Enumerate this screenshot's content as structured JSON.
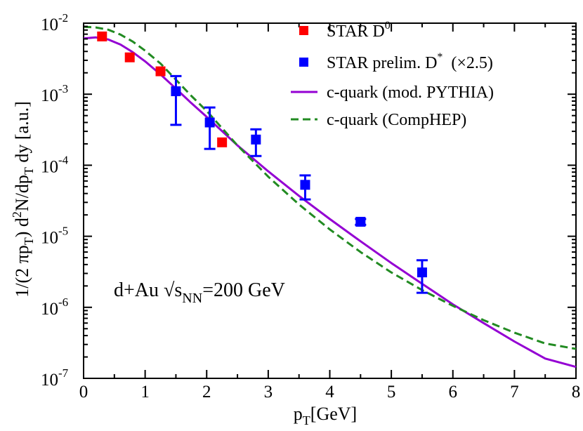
{
  "chart_data": {
    "type": "scatter",
    "title": "",
    "xlabel": {
      "main": "p",
      "sub": "T",
      "rest": "[GeV]"
    },
    "ylabel": "1/(2 πp_T) d^2N/dp_T dy  [a.u.]",
    "ylabel_parts": {
      "p1": "1/(2 πp",
      "s1": "T",
      "p2": ") d",
      "sup": "2",
      "p3": "N/dp",
      "s2": "T",
      "p4": " dy  [a.u.]"
    },
    "xlim": [
      0,
      8
    ],
    "ylim": [
      1e-07,
      0.01
    ],
    "yscale": "log",
    "x_ticks": [
      "0",
      "1",
      "2",
      "3",
      "4",
      "5",
      "6",
      "7",
      "8"
    ],
    "y_ticks": [
      {
        "value": 1e-07,
        "base": "10",
        "exp": "-7"
      },
      {
        "value": 1e-06,
        "base": "10",
        "exp": "-6"
      },
      {
        "value": 1e-05,
        "base": "10",
        "exp": "-5"
      },
      {
        "value": 0.0001,
        "base": "10",
        "exp": "-4"
      },
      {
        "value": 0.001,
        "base": "10",
        "exp": "-3"
      },
      {
        "value": 0.01,
        "base": "10",
        "exp": "-2"
      }
    ],
    "grid": false,
    "legend_position": "top-right",
    "series": [
      {
        "name": "STAR D",
        "name_sup": "0",
        "name_suffix": "",
        "kind": "markers",
        "color": "#ff0000",
        "x": [
          0.3,
          0.75,
          1.25,
          2.25
        ],
        "y": [
          0.0065,
          0.0033,
          0.0021,
          0.00021
        ]
      },
      {
        "name": "STAR prelim. D",
        "name_sup": "*",
        "name_suffix": "  (×2.5)",
        "kind": "markers_errorbars",
        "color": "#0000ff",
        "x": [
          1.5,
          2.05,
          2.8,
          3.6,
          4.5,
          5.5
        ],
        "y": [
          0.0011,
          0.0004,
          0.00023,
          5.3e-05,
          1.6e-05,
          3.1e-06
        ],
        "y_low": [
          0.00037,
          0.00017,
          0.000135,
          3.3e-05,
          1.45e-05,
          1.6e-06
        ],
        "y_high": [
          0.0018,
          0.00065,
          0.00032,
          7.2e-05,
          1.75e-05,
          4.6e-06
        ]
      },
      {
        "name": "c-quark (mod. PYTHIA)",
        "kind": "line",
        "color": "#9400d3",
        "x": [
          0,
          0.2,
          0.4,
          0.6,
          0.8,
          1.0,
          1.25,
          1.5,
          1.75,
          2.0,
          2.5,
          3.0,
          3.5,
          4.0,
          4.5,
          5.0,
          5.5,
          6.0,
          6.5,
          7.0,
          7.5,
          8.0
        ],
        "y": [
          0.0061,
          0.0063,
          0.0059,
          0.005,
          0.0039,
          0.0029,
          0.0019,
          0.0012,
          0.00075,
          0.00048,
          0.00019,
          8.2e-05,
          3.7e-05,
          1.75e-05,
          8.5e-06,
          4.2e-06,
          2.15e-06,
          1.1e-06,
          6e-07,
          3.3e-07,
          1.9e-07,
          1.45e-07
        ]
      },
      {
        "name": "c-quark (CompHEP)",
        "kind": "dashed_line",
        "color": "#228b22",
        "x": [
          0,
          0.2,
          0.4,
          0.6,
          0.8,
          1.0,
          1.25,
          1.5,
          1.75,
          2.0,
          2.5,
          3.0,
          3.5,
          4.0,
          4.5,
          5.0,
          5.5,
          6.0,
          6.5,
          7.0,
          7.5,
          8.0
        ],
        "y": [
          0.0089,
          0.0087,
          0.0081,
          0.0069,
          0.0055,
          0.0041,
          0.0027,
          0.0016,
          0.00095,
          0.00058,
          0.00019,
          6.9e-05,
          2.8e-05,
          1.25e-05,
          6e-06,
          3.1e-06,
          1.75e-06,
          1.05e-06,
          6.6e-07,
          4.4e-07,
          3.1e-07,
          2.6e-07
        ]
      }
    ],
    "annotation": {
      "prefix": "d+Au ",
      "sqrt": "√",
      "s": "s",
      "sub": "NN",
      "rest": "=200 GeV"
    }
  }
}
